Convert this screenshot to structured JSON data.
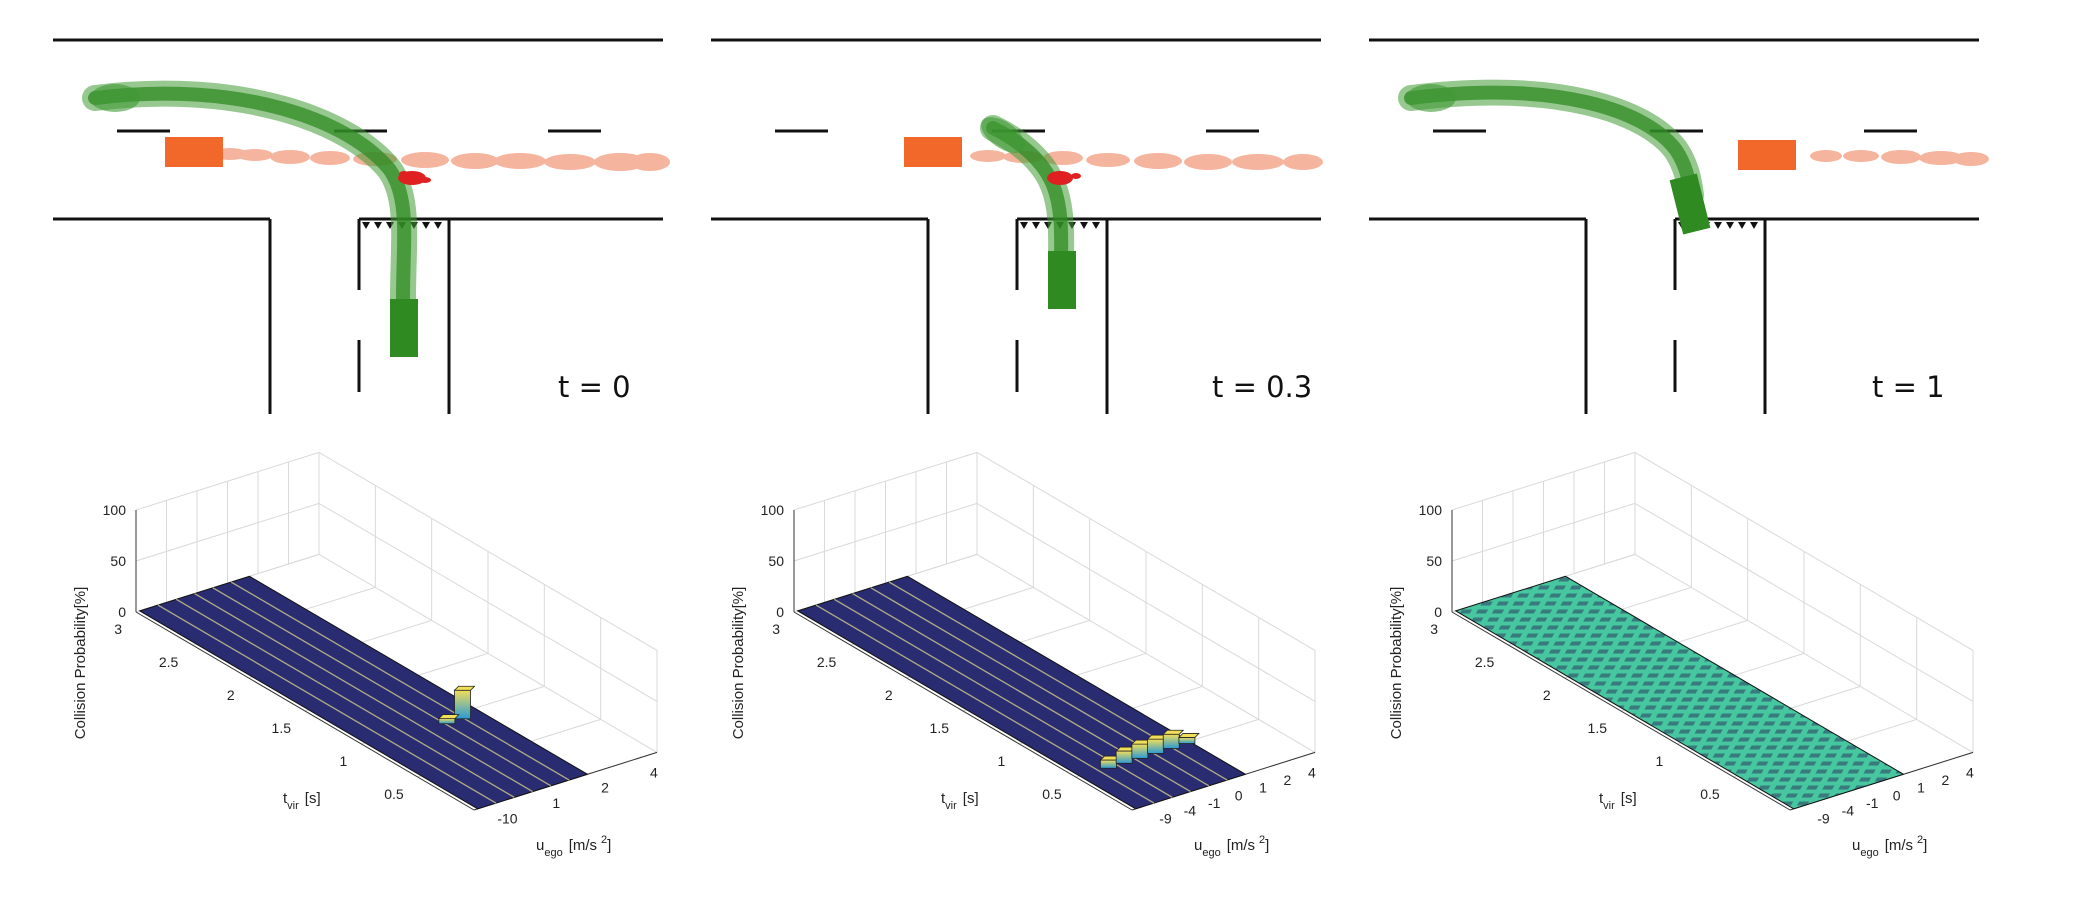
{
  "colors": {
    "road": "#111111",
    "ego": "#2f8a22",
    "ego_trail": "#3f9a35",
    "other": "#f2682a",
    "other_trail": "#f4a78d",
    "collision": "#e02020",
    "surface_zero": "#2a2c72",
    "surface_low": "#46c7a0",
    "bar_low": "#2a9ad6",
    "bar_high": "#f2de58"
  },
  "panels": [
    {
      "time_label": "t = 0",
      "ego_state": "approaching",
      "other_state": "left"
    },
    {
      "time_label": "t = 0.3",
      "ego_state": "turning",
      "other_state": "center"
    },
    {
      "time_label": "t = 1",
      "ego_state": "entering",
      "other_state": "right"
    }
  ],
  "chart_data": [
    {
      "type": "bar3d",
      "zlabel": "Collision Probability[%]",
      "ylabel_main": "t",
      "ylabel_sub": "vir",
      "ylabel_unit": "[s]",
      "xlabel_main": "u",
      "xlabel_sub": "ego",
      "xlabel_unit": "[m/s",
      "xlabel_sup": "2",
      "xlabel_close": "]",
      "zlim": [
        0,
        100
      ],
      "zticks": [
        "0",
        "50",
        "100"
      ],
      "yticks": [
        "3",
        "2.5",
        "2",
        "1.5",
        "1",
        "0.5"
      ],
      "xticks": [
        "-10",
        "1",
        "2",
        "4"
      ],
      "surface": "zero",
      "bars": [
        {
          "u_index": 5,
          "t": 0.9,
          "value": 28
        },
        {
          "u_index": 4,
          "t": 0.9,
          "value": 5
        }
      ]
    },
    {
      "type": "bar3d",
      "zlabel": "Collision Probability[%]",
      "ylabel_main": "t",
      "ylabel_sub": "vir",
      "ylabel_unit": "[s]",
      "xlabel_main": "u",
      "xlabel_sub": "ego",
      "xlabel_unit": "[m/s",
      "xlabel_sup": "2",
      "xlabel_close": "]",
      "zlim": [
        0,
        100
      ],
      "zticks": [
        "0",
        "50",
        "100"
      ],
      "yticks": [
        "3",
        "2.5",
        "2",
        "1.5",
        "1",
        "0.5"
      ],
      "xticks": [
        "-9",
        "-4",
        "-1",
        "0",
        "1",
        "2",
        "4"
      ],
      "surface": "zero",
      "bars": [
        {
          "u_index": 1,
          "t": 0.45,
          "value": 8
        },
        {
          "u_index": 2,
          "t": 0.45,
          "value": 12
        },
        {
          "u_index": 3,
          "t": 0.45,
          "value": 14
        },
        {
          "u_index": 4,
          "t": 0.45,
          "value": 14
        },
        {
          "u_index": 5,
          "t": 0.45,
          "value": 14
        },
        {
          "u_index": 6,
          "t": 0.45,
          "value": 6
        }
      ]
    },
    {
      "type": "bar3d",
      "zlabel": "Collision Probability[%]",
      "ylabel_main": "t",
      "ylabel_sub": "vir",
      "ylabel_unit": "[s]",
      "xlabel_main": "u",
      "xlabel_sub": "ego",
      "xlabel_unit": "[m/s",
      "xlabel_sup": "2",
      "xlabel_close": "]",
      "zlim": [
        0,
        100
      ],
      "zticks": [
        "0",
        "50",
        "100"
      ],
      "yticks": [
        "3",
        "2.5",
        "2",
        "1.5",
        "1",
        "0.5"
      ],
      "xticks": [
        "-9",
        "-4",
        "-1",
        "0",
        "1",
        "2",
        "4"
      ],
      "surface": "low",
      "bars": []
    }
  ]
}
